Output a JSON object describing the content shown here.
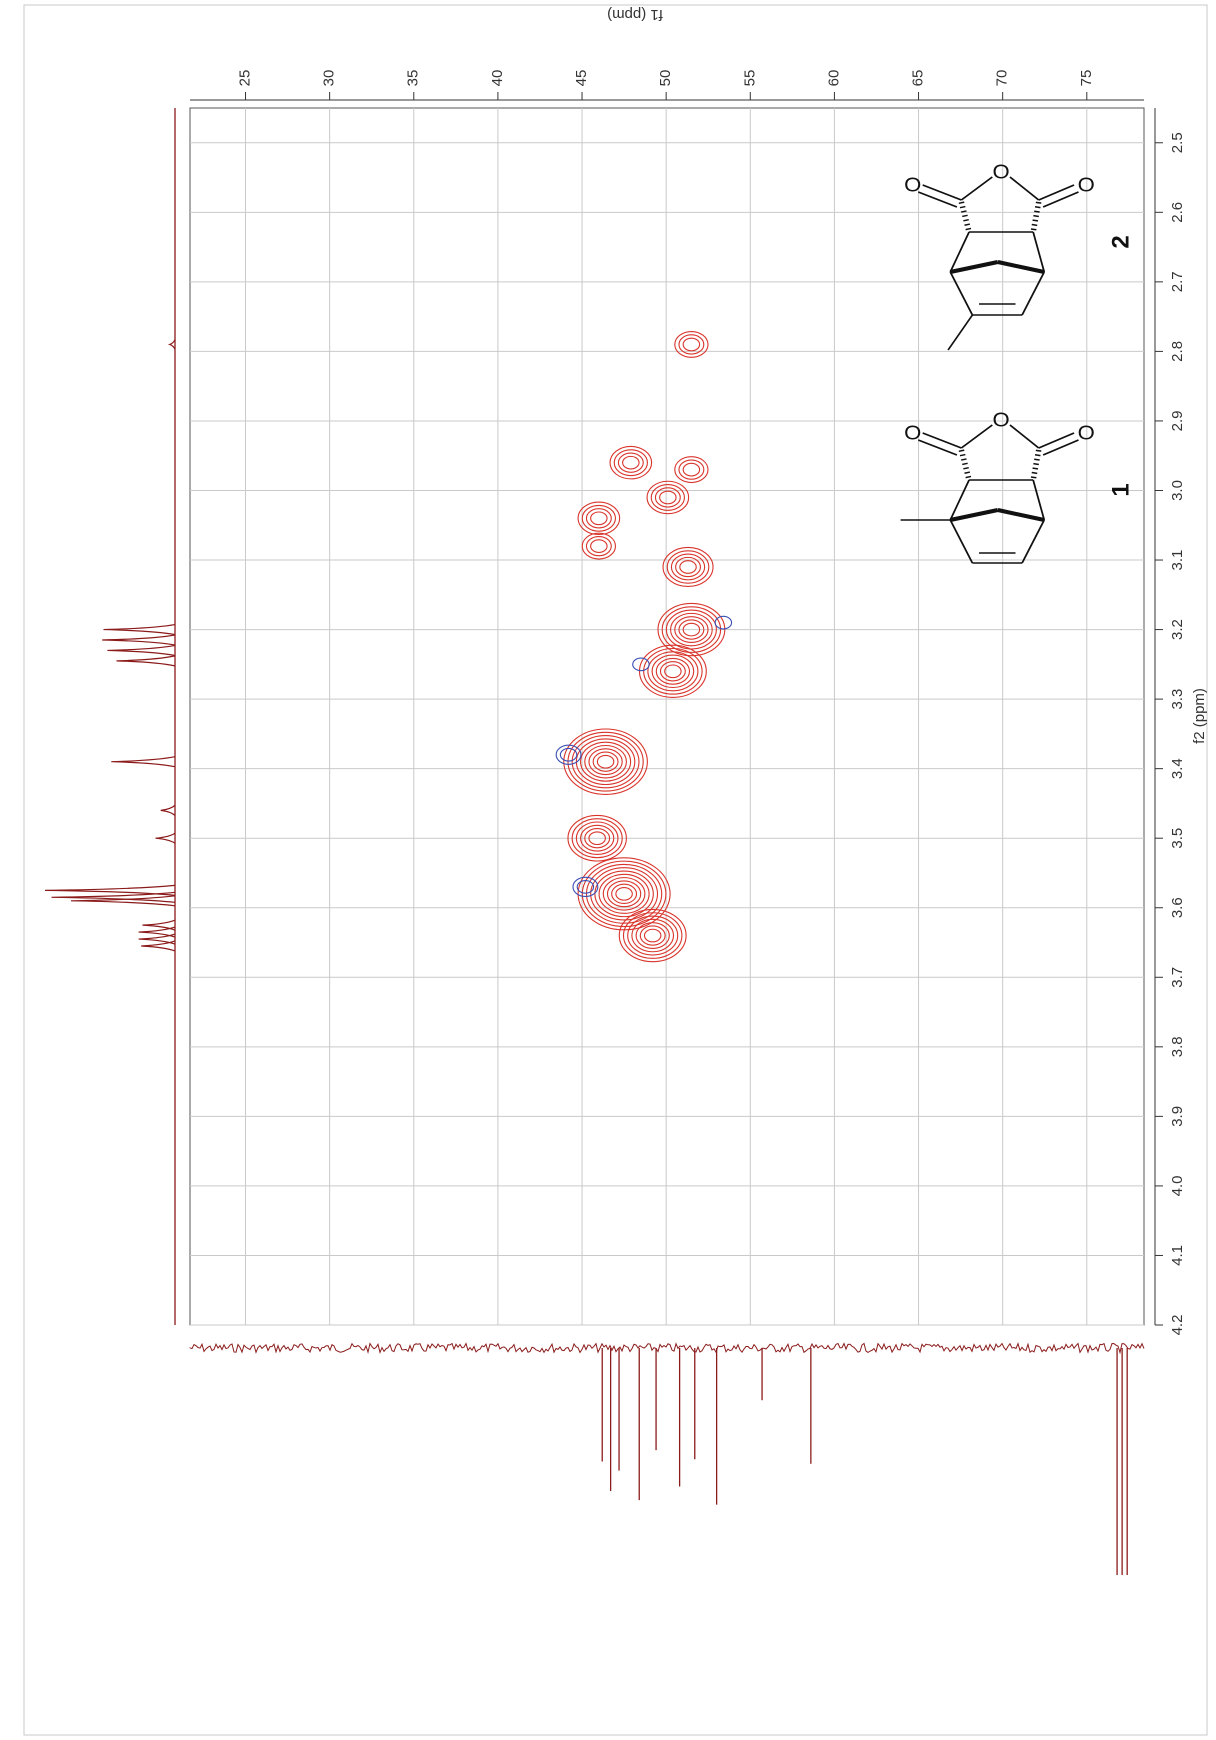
{
  "chart_data": {
    "type": "hsqc",
    "x_label": "f1 (ppm)",
    "y_label": "f2 (ppm)",
    "xlim": [
      21.7,
      78.4
    ],
    "xticks": [
      25,
      30,
      35,
      40,
      45,
      50,
      55,
      60,
      65,
      70,
      75
    ],
    "ylim": [
      2.45,
      4.2
    ],
    "yticks": [
      2.5,
      2.6,
      2.7,
      2.8,
      2.9,
      {
        "value": 3,
        "label": "3.0"
      },
      3.1,
      3.2,
      3.3,
      3.4,
      3.5,
      3.6,
      3.7,
      3.8,
      3.9,
      {
        "value": 4,
        "label": "4.0"
      },
      4.1,
      4.2
    ],
    "grid": true,
    "positive_color": "#d9342b",
    "negative_color": "#3a4fb5",
    "trace_color": "#8b1a1a",
    "positive_peaks": {
      "f1": [
        51.5,
        47.9,
        51.5,
        50.1,
        46.0,
        46.0,
        51.3,
        51.5,
        50.4,
        46.4,
        45.9,
        47.5,
        49.2
      ],
      "f2": [
        2.79,
        2.96,
        2.97,
        3.01,
        3.04,
        3.08,
        3.11,
        3.2,
        3.26,
        3.39,
        3.5,
        3.58,
        3.64
      ],
      "levels": [
        3,
        4,
        3,
        4,
        4,
        3,
        5,
        7,
        7,
        9,
        6,
        10,
        7
      ]
    },
    "negative_peaks": {
      "f1": [
        53.4,
        48.5,
        44.2,
        45.2
      ],
      "f2": [
        3.19,
        3.25,
        3.38,
        3.57
      ],
      "levels": [
        1,
        1,
        2,
        2
      ]
    },
    "f2_projection": {
      "shifts": [
        2.79,
        3.2,
        3.215,
        3.23,
        3.245,
        3.39,
        3.46,
        3.5,
        3.575,
        3.585,
        3.59,
        3.625,
        3.635,
        3.645,
        3.655
      ],
      "intensity": [
        4,
        55,
        56,
        52,
        45,
        49,
        11,
        15,
        100,
        95,
        80,
        25,
        28,
        28,
        26
      ]
    },
    "f1_projection": {
      "shifts": [
        46.2,
        46.7,
        47.2,
        48.4,
        49.4,
        50.8,
        51.7,
        53.0,
        55.7,
        58.6,
        76.8,
        77.1,
        77.4
      ],
      "intensity": [
        50,
        63,
        54,
        67,
        45,
        61,
        49,
        69,
        23,
        51,
        100,
        100,
        100
      ]
    }
  },
  "structures": [
    {
      "label": "2",
      "atoms": [
        "O",
        "O",
        "O"
      ]
    },
    {
      "label": "1",
      "atoms": [
        "O",
        "O",
        "O"
      ]
    }
  ]
}
